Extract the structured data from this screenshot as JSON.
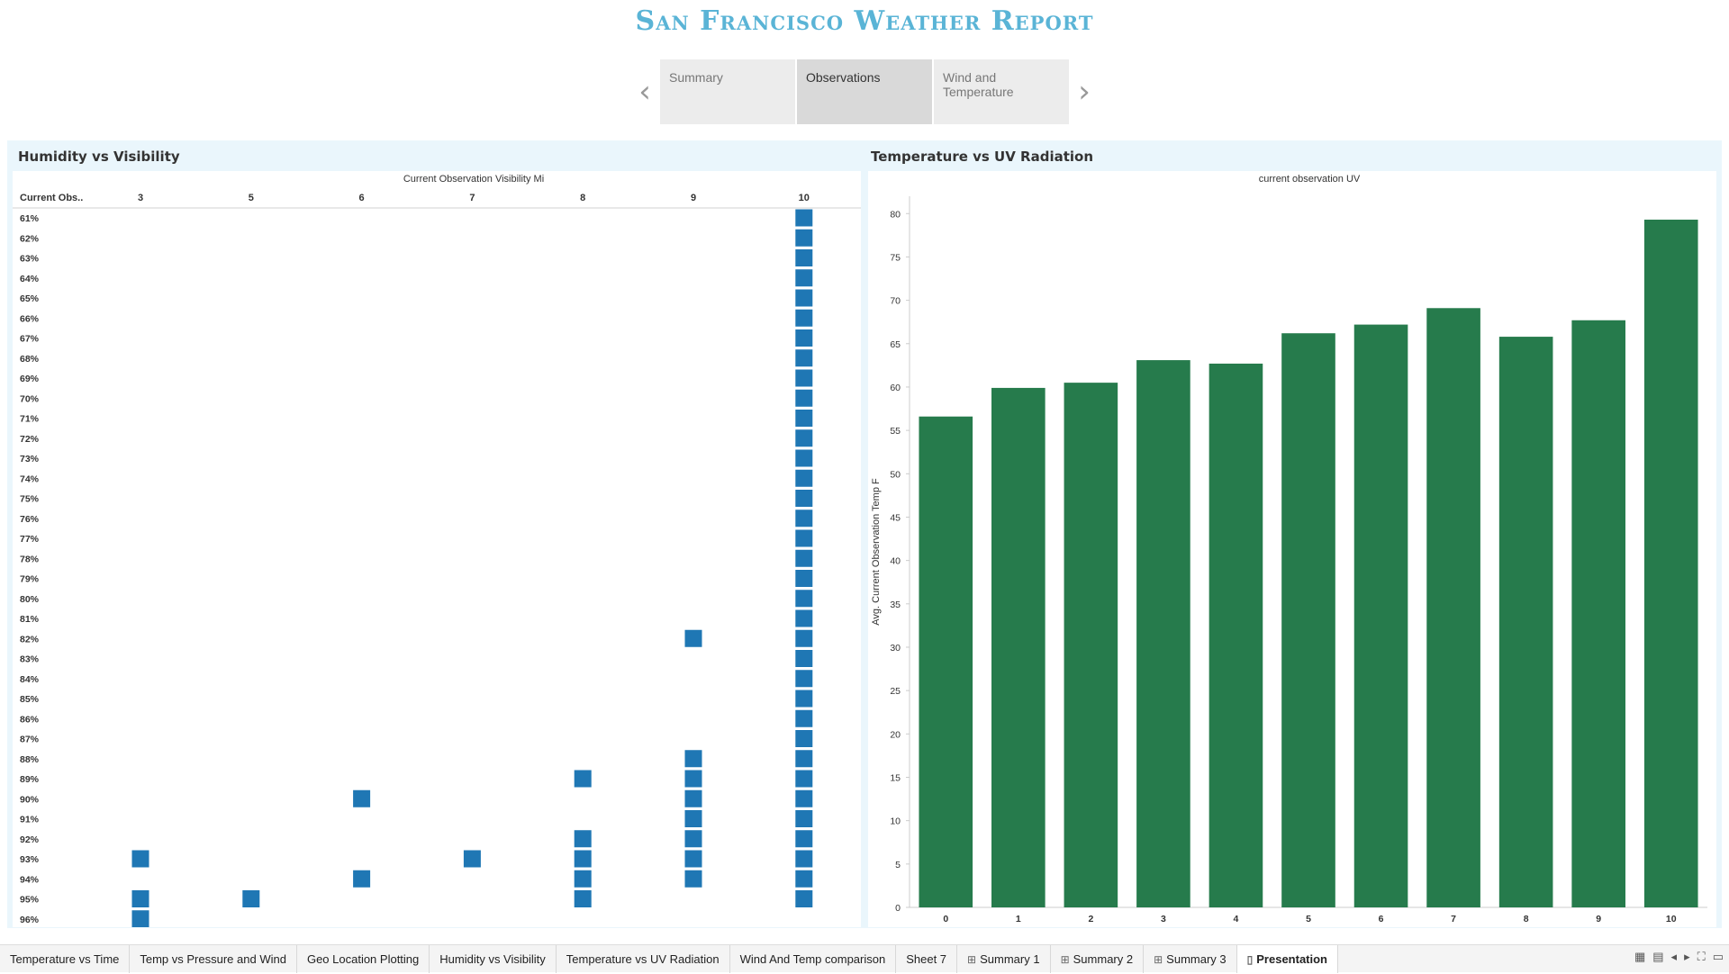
{
  "title": "San Francisco Weather Report",
  "story": {
    "prev_icon": "chevron-left-icon",
    "next_icon": "chevron-right-icon",
    "points": [
      "Summary",
      "Observations",
      "Wind and Temperature"
    ],
    "active": 1
  },
  "panels": {
    "left_title": "Humidity vs Visibility",
    "right_title": "Temperature vs UV Radiation"
  },
  "chart_data": [
    {
      "type": "heatmap",
      "title": "Humidity vs Visibility",
      "xlabel": "Current Observation Visibility Mi",
      "row_header": "Current Obs..",
      "x": [
        3,
        5,
        6,
        7,
        8,
        9,
        10
      ],
      "y": [
        "61%",
        "62%",
        "63%",
        "64%",
        "65%",
        "66%",
        "67%",
        "68%",
        "69%",
        "70%",
        "71%",
        "72%",
        "73%",
        "74%",
        "75%",
        "76%",
        "77%",
        "78%",
        "79%",
        "80%",
        "81%",
        "82%",
        "83%",
        "84%",
        "85%",
        "86%",
        "87%",
        "88%",
        "89%",
        "90%",
        "91%",
        "92%",
        "93%",
        "94%",
        "95%",
        "96%"
      ],
      "color": "#1f77b4",
      "cells": [
        [
          "61%",
          10
        ],
        [
          "62%",
          10
        ],
        [
          "63%",
          10
        ],
        [
          "64%",
          10
        ],
        [
          "65%",
          10
        ],
        [
          "66%",
          10
        ],
        [
          "67%",
          10
        ],
        [
          "68%",
          10
        ],
        [
          "69%",
          10
        ],
        [
          "70%",
          10
        ],
        [
          "71%",
          10
        ],
        [
          "72%",
          10
        ],
        [
          "73%",
          10
        ],
        [
          "74%",
          10
        ],
        [
          "75%",
          10
        ],
        [
          "76%",
          10
        ],
        [
          "77%",
          10
        ],
        [
          "78%",
          10
        ],
        [
          "79%",
          10
        ],
        [
          "80%",
          10
        ],
        [
          "81%",
          10
        ],
        [
          "82%",
          9
        ],
        [
          "82%",
          10
        ],
        [
          "83%",
          10
        ],
        [
          "84%",
          10
        ],
        [
          "85%",
          10
        ],
        [
          "86%",
          10
        ],
        [
          "87%",
          10
        ],
        [
          "88%",
          9
        ],
        [
          "88%",
          10
        ],
        [
          "89%",
          8
        ],
        [
          "89%",
          9
        ],
        [
          "89%",
          10
        ],
        [
          "90%",
          6
        ],
        [
          "90%",
          9
        ],
        [
          "90%",
          10
        ],
        [
          "91%",
          9
        ],
        [
          "91%",
          10
        ],
        [
          "92%",
          8
        ],
        [
          "92%",
          9
        ],
        [
          "92%",
          10
        ],
        [
          "93%",
          3
        ],
        [
          "93%",
          7
        ],
        [
          "93%",
          8
        ],
        [
          "93%",
          9
        ],
        [
          "93%",
          10
        ],
        [
          "94%",
          6
        ],
        [
          "94%",
          8
        ],
        [
          "94%",
          9
        ],
        [
          "94%",
          10
        ],
        [
          "95%",
          3
        ],
        [
          "95%",
          5
        ],
        [
          "95%",
          8
        ],
        [
          "95%",
          10
        ],
        [
          "96%",
          3
        ]
      ]
    },
    {
      "type": "bar",
      "title": "Temperature vs UV Radiation",
      "xlabel": "current observation UV",
      "ylabel": "Avg. Current Observation Temp F",
      "categories": [
        "0",
        "1",
        "2",
        "3",
        "4",
        "5",
        "6",
        "7",
        "8",
        "9",
        "10"
      ],
      "values": [
        56.6,
        59.9,
        60.5,
        63.1,
        62.7,
        66.2,
        67.2,
        69.1,
        65.8,
        67.7,
        79.3
      ],
      "ylim": [
        0,
        82
      ],
      "yticks": [
        0,
        5,
        10,
        15,
        20,
        25,
        30,
        35,
        40,
        45,
        50,
        55,
        60,
        65,
        70,
        75,
        80
      ],
      "color": "#267b4c",
      "grid": false
    }
  ],
  "tabs": [
    {
      "label": "Temperature vs Time",
      "icon": ""
    },
    {
      "label": "Temp vs Pressure and Wind",
      "icon": ""
    },
    {
      "label": "Geo Location Plotting",
      "icon": ""
    },
    {
      "label": "Humidity vs Visibility",
      "icon": ""
    },
    {
      "label": "Temperature vs UV Radiation",
      "icon": ""
    },
    {
      "label": "Wind And Temp comparison",
      "icon": ""
    },
    {
      "label": "Sheet 7",
      "icon": ""
    },
    {
      "label": "Summary 1",
      "icon": "dashboard-icon"
    },
    {
      "label": "Summary 2",
      "icon": "dashboard-icon"
    },
    {
      "label": "Summary 3",
      "icon": "dashboard-icon"
    },
    {
      "label": "Presentation",
      "icon": "story-icon"
    }
  ],
  "active_tab": 10,
  "tab_controls": [
    "show-filmstrip-icon",
    "show-tabs-icon",
    "prev-sheet-icon",
    "next-sheet-icon",
    "fullscreen-icon",
    "present-icon"
  ]
}
